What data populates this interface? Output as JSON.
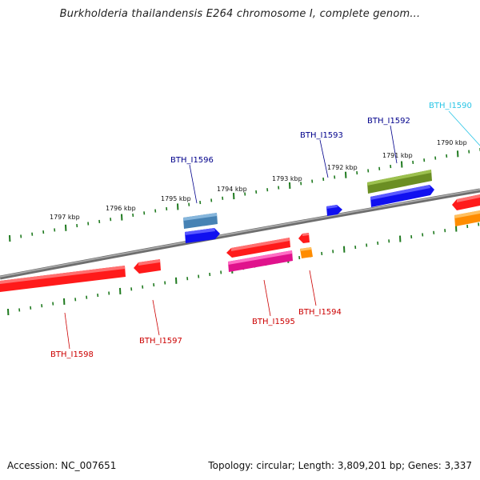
{
  "title": "Burkholderia thailandensis E264 chromosome I, complete genom...",
  "footer": {
    "accession": "Accession: NC_007651",
    "summary": "Topology: circular; Length: 3,809,201 bp; Genes: 3,337"
  },
  "backbone_color": "#808080",
  "tick_color": "#1f7a1f",
  "kbp_labels": [
    "1797 kbp",
    "1796 kbp",
    "1795 kbp",
    "1794 kbp",
    "1793 kbp",
    "1792 kbp",
    "1791 kbp",
    "1790 kbp"
  ],
  "genes": [
    {
      "id": "BTH_I1598",
      "color": "#cc0000"
    },
    {
      "id": "BTH_I1597",
      "color": "#cc0000"
    },
    {
      "id": "BTH_I1596",
      "color": "#00008b"
    },
    {
      "id": "BTH_I1595",
      "color": "#cc0000"
    },
    {
      "id": "BTH_I1594",
      "color": "#cc0000"
    },
    {
      "id": "BTH_I1593",
      "color": "#00008b"
    },
    {
      "id": "BTH_I1592",
      "color": "#00008b"
    },
    {
      "id": "BTH_I1590",
      "color": "#29c5e6"
    }
  ],
  "feature_colors": {
    "red": "#ff1a1a",
    "blue": "#1010f0",
    "steelblue": "#4682b4",
    "olive": "#6b8e23",
    "magenta": "#e0128c",
    "orange": "#ff8c00"
  }
}
